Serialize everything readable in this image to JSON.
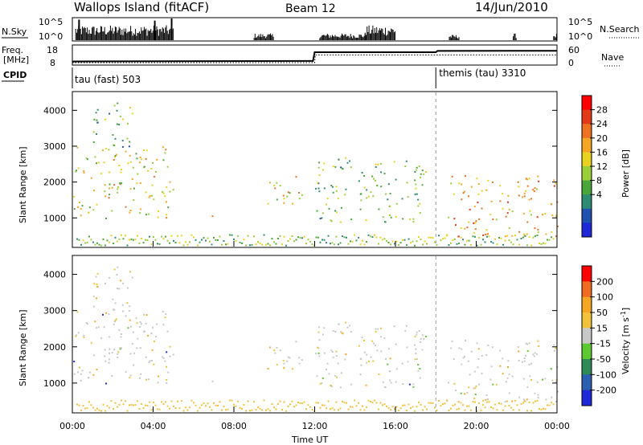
{
  "header": {
    "station": "Wallops Island (fitACF)",
    "beam": "Beam 12",
    "date": "14/Jun/2010"
  },
  "chart_data": [
    {
      "type": "bar",
      "name": "nsky-panel",
      "ylabel": "N.Sky",
      "right_label": "N.Search",
      "left_ticks": [
        "10^5",
        "10^0"
      ],
      "right_ticks": [
        "10^5",
        "10^0"
      ],
      "bursts": [
        {
          "from": "00:10",
          "to": "05:00",
          "level": 0.55
        },
        {
          "from": "09:00",
          "to": "10:00",
          "level": 0.25
        },
        {
          "from": "12:15",
          "to": "14:30",
          "level": 0.25
        },
        {
          "from": "14:30",
          "to": "16:00",
          "level": 0.55
        },
        {
          "from": "18:40",
          "to": "19:10",
          "level": 0.2
        },
        {
          "from": "21:50",
          "to": "22:00",
          "level": 0.25
        },
        {
          "from": "23:50",
          "to": "24:00",
          "level": 0.25
        }
      ],
      "spikes": [
        {
          "t": "00:20",
          "level": 0.95
        },
        {
          "t": "04:05",
          "level": 0.9
        },
        {
          "t": "04:55",
          "level": 1.0
        }
      ]
    },
    {
      "type": "line",
      "name": "freq-panel",
      "ylabel_top": "Freq.",
      "ylabel_bottom": "[MHz]",
      "right_label": "Nave",
      "left_ticks": [
        "18",
        "8"
      ],
      "right_ticks": [
        "60",
        "0"
      ],
      "freq_series": [
        [
          "00:00",
          9.5
        ],
        [
          "11:55",
          9.8
        ],
        [
          "12:00",
          14.5
        ],
        [
          "18:00",
          14.5
        ],
        [
          "18:05",
          15.2
        ],
        [
          "24:00",
          15.3
        ]
      ],
      "nave_series": [
        [
          "00:00",
          0
        ],
        [
          "12:00",
          0
        ],
        [
          "12:02",
          25
        ],
        [
          "24:00",
          25
        ]
      ]
    },
    {
      "type": "timeline",
      "name": "cpid-panel",
      "label": "CPID",
      "programs": [
        {
          "name": "tau (fast) 503",
          "start": "00:00"
        },
        {
          "name": "themis (tau) 3310",
          "start": "18:00"
        }
      ]
    },
    {
      "type": "heatmap",
      "name": "power-panel",
      "ylabel": "Slant Range [km]",
      "yticks": [
        1000,
        2000,
        3000,
        4000
      ],
      "ylim": [
        200,
        4500
      ],
      "colorbar": {
        "label": "Power [dB]",
        "ticks": [
          "28",
          "24",
          "20",
          "16",
          "12",
          "8",
          "4"
        ],
        "colors": [
          "#1f28d7",
          "#2050b0",
          "#2e8b74",
          "#4aa63a",
          "#9bcf3a",
          "#e9d21f",
          "#f5a623",
          "#ee7021",
          "#e23a18",
          "#ff0000"
        ]
      },
      "echo_regions": [
        {
          "from": "00:00",
          "to": "05:00",
          "lo": 1000,
          "hi": 3000,
          "power": 14
        },
        {
          "from": "01:00",
          "to": "03:00",
          "lo": 3000,
          "hi": 4300,
          "power": 10
        },
        {
          "from": "06:50",
          "to": "07:30",
          "lo": 950,
          "hi": 1100,
          "power": 16
        },
        {
          "from": "09:30",
          "to": "11:30",
          "lo": 1400,
          "hi": 2200,
          "power": 16
        },
        {
          "from": "12:00",
          "to": "17:30",
          "lo": 900,
          "hi": 2700,
          "power": 10
        },
        {
          "from": "18:30",
          "to": "24:00",
          "lo": 500,
          "hi": 2200,
          "power": 18
        }
      ]
    },
    {
      "type": "heatmap",
      "name": "velocity-panel",
      "ylabel": "Slant Range [km]",
      "xlabel": "Time UT",
      "xticks": [
        "00:00",
        "04:00",
        "08:00",
        "12:00",
        "16:00",
        "20:00",
        "00:00"
      ],
      "yticks": [
        1000,
        2000,
        3000,
        4000
      ],
      "ylim": [
        200,
        4500
      ],
      "colorbar": {
        "label": "Velocity [m s^-1]",
        "ticks": [
          "200",
          "100",
          "50",
          "15",
          "-15",
          "-50",
          "-100",
          "-200"
        ],
        "colors": [
          "#1f28d7",
          "#2c5fb2",
          "#2e8b57",
          "#5cc932",
          "#c8c8c8",
          "#f2c23c",
          "#f5a623",
          "#ee6b1f",
          "#ff0000"
        ]
      }
    }
  ]
}
